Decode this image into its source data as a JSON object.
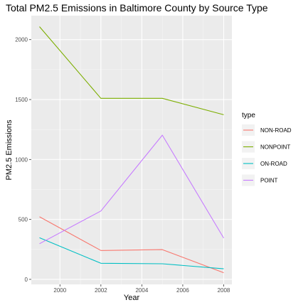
{
  "chart_data": {
    "type": "line",
    "title": "Total PM2.5 Emissions in Baltimore County by Source Type",
    "xlabel": "Year",
    "ylabel": "PM2.5 Emissions",
    "x": [
      1999,
      2002,
      2005,
      2008
    ],
    "xticks": [
      2000,
      2002,
      2004,
      2006,
      2008
    ],
    "xtick_labels": [
      "2000",
      "2002",
      "2004",
      "2006",
      "2008"
    ],
    "yticks": [
      0,
      500,
      1000,
      1500,
      2000
    ],
    "ytick_labels": [
      "0",
      "500",
      "1000",
      "1500",
      "2000"
    ],
    "xlim": [
      1998.6,
      2008.4
    ],
    "ylim": [
      -42,
      2200
    ],
    "grid": true,
    "legend_title": "type",
    "legend_position": "right",
    "series": [
      {
        "name": "NON-ROAD",
        "color": "#F8766D",
        "values": [
          522,
          241,
          248,
          55
        ]
      },
      {
        "name": "NONPOINT",
        "color": "#7CAE00",
        "values": [
          2108,
          1510,
          1510,
          1373
        ]
      },
      {
        "name": "ON-ROAD",
        "color": "#00BFC4",
        "values": [
          347,
          134,
          130,
          88
        ]
      },
      {
        "name": "POINT",
        "color": "#C77CFF",
        "values": [
          297,
          570,
          1203,
          344
        ]
      }
    ]
  }
}
